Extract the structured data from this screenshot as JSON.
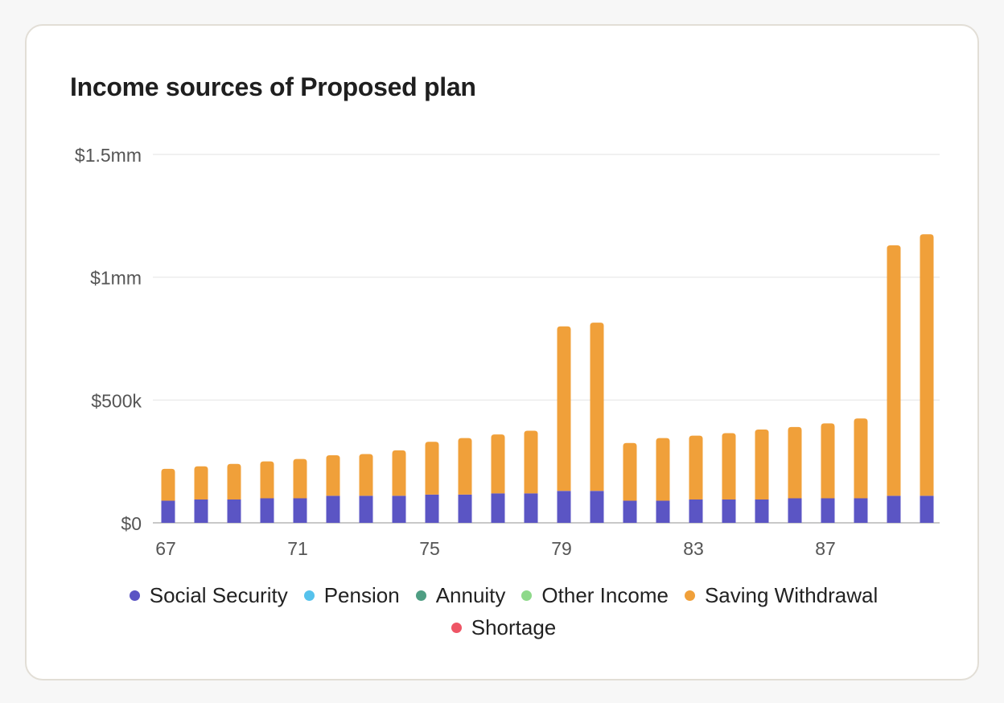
{
  "chart_data": {
    "type": "bar",
    "stacked": true,
    "title": "Income sources of Proposed plan",
    "categories": [
      "67",
      "68",
      "69",
      "70",
      "71",
      "72",
      "73",
      "74",
      "75",
      "76",
      "77",
      "78",
      "79",
      "80",
      "81",
      "82",
      "83",
      "84",
      "85",
      "86",
      "87",
      "88",
      "89",
      "90"
    ],
    "x_tick_labels": [
      "67",
      "71",
      "75",
      "79",
      "83",
      "87"
    ],
    "y_tick_labels": [
      "$0",
      "$500k",
      "$1mm",
      "$1.5mm"
    ],
    "y_ticks": [
      0,
      500000,
      1000000,
      1500000
    ],
    "ylim": [
      0,
      1500000
    ],
    "grid": true,
    "legend_position": "bottom",
    "series": [
      {
        "name": "Social Security",
        "color": "#5b55c4",
        "values": [
          90000,
          95000,
          95000,
          100000,
          100000,
          110000,
          110000,
          110000,
          115000,
          115000,
          120000,
          120000,
          130000,
          130000,
          90000,
          90000,
          95000,
          95000,
          95000,
          100000,
          100000,
          100000,
          110000,
          110000
        ]
      },
      {
        "name": "Pension",
        "color": "#56c2ec",
        "values": [
          0,
          0,
          0,
          0,
          0,
          0,
          0,
          0,
          0,
          0,
          0,
          0,
          0,
          0,
          0,
          0,
          0,
          0,
          0,
          0,
          0,
          0,
          0,
          0
        ]
      },
      {
        "name": "Annuity",
        "color": "#4f9e83",
        "values": [
          0,
          0,
          0,
          0,
          0,
          0,
          0,
          0,
          0,
          0,
          0,
          0,
          0,
          0,
          0,
          0,
          0,
          0,
          0,
          0,
          0,
          0,
          0,
          0
        ]
      },
      {
        "name": "Other Income",
        "color": "#8ed98a",
        "values": [
          0,
          0,
          0,
          0,
          0,
          0,
          0,
          0,
          0,
          0,
          0,
          0,
          0,
          0,
          0,
          0,
          0,
          0,
          0,
          0,
          0,
          0,
          0,
          0
        ]
      },
      {
        "name": "Saving Withdrawal",
        "color": "#f0a03a",
        "values": [
          130000,
          135000,
          145000,
          150000,
          160000,
          165000,
          170000,
          185000,
          215000,
          230000,
          240000,
          255000,
          670000,
          685000,
          235000,
          255000,
          260000,
          270000,
          285000,
          290000,
          305000,
          325000,
          1020000,
          1065000
        ]
      },
      {
        "name": "Shortage",
        "color": "#ee5565",
        "values": [
          0,
          0,
          0,
          0,
          0,
          0,
          0,
          0,
          0,
          0,
          0,
          0,
          0,
          0,
          0,
          0,
          0,
          0,
          0,
          0,
          0,
          0,
          0,
          0
        ]
      }
    ]
  },
  "legend": [
    {
      "label": "Social Security",
      "color": "#5b55c4"
    },
    {
      "label": "Pension",
      "color": "#56c2ec"
    },
    {
      "label": "Annuity",
      "color": "#4f9e83"
    },
    {
      "label": "Other Income",
      "color": "#8ed98a"
    },
    {
      "label": "Saving Withdrawal",
      "color": "#f0a03a"
    },
    {
      "label": "Shortage",
      "color": "#ee5565"
    }
  ]
}
